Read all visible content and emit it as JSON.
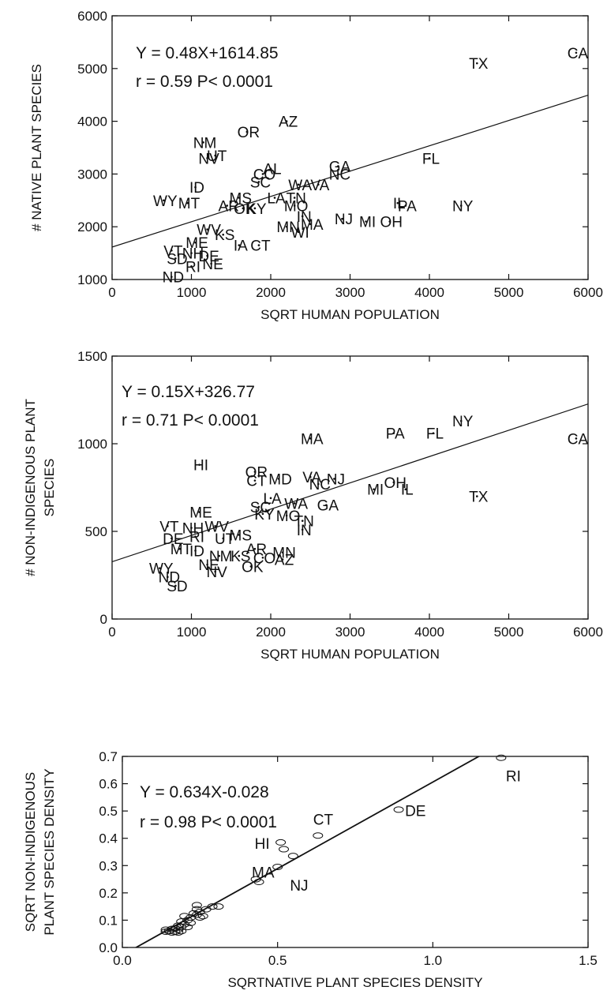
{
  "chart_data": [
    {
      "type": "scatter",
      "xlabel": "SQRT HUMAN POPULATION",
      "ylabel": "# NATIVE PLANT SPECIES",
      "xlim": [
        0,
        6000
      ],
      "ylim": [
        1000,
        6000
      ],
      "xticks": [
        0,
        1000,
        2000,
        3000,
        4000,
        5000,
        6000
      ],
      "yticks": [
        1000,
        2000,
        3000,
        4000,
        5000,
        6000
      ],
      "xtick_labels": [
        "0",
        "1000",
        "2000",
        "3000",
        "4000",
        "5000",
        "6000"
      ],
      "ytick_labels": [
        "1000",
        "2000",
        "3000",
        "4000",
        "5000",
        "6000"
      ],
      "annotations": [
        "Y = 0.48X+1614.85",
        "r = 0.59  P< 0.0001"
      ],
      "fit": {
        "slope": 0.48,
        "intercept": 1614.85
      },
      "grid": false,
      "points": [
        {
          "label": "CA",
          "x": 5850,
          "y": 5300
        },
        {
          "label": "TX",
          "x": 4600,
          "y": 5100
        },
        {
          "label": "AZ",
          "x": 2200,
          "y": 4000
        },
        {
          "label": "OR",
          "x": 1700,
          "y": 3800
        },
        {
          "label": "NM",
          "x": 1150,
          "y": 3600
        },
        {
          "label": "UT",
          "x": 1300,
          "y": 3350
        },
        {
          "label": "NV",
          "x": 1200,
          "y": 3300
        },
        {
          "label": "FL",
          "x": 4000,
          "y": 3300
        },
        {
          "label": "GA",
          "x": 2850,
          "y": 3150
        },
        {
          "label": "AL",
          "x": 2000,
          "y": 3100
        },
        {
          "label": "CO",
          "x": 1900,
          "y": 3000
        },
        {
          "label": "NC",
          "x": 2850,
          "y": 3000
        },
        {
          "label": "SC",
          "x": 1850,
          "y": 2850
        },
        {
          "label": "WA",
          "x": 2350,
          "y": 2800
        },
        {
          "label": "VA",
          "x": 2600,
          "y": 2800
        },
        {
          "label": "ID",
          "x": 1050,
          "y": 2750
        },
        {
          "label": "WY",
          "x": 650,
          "y": 2500
        },
        {
          "label": "MT",
          "x": 950,
          "y": 2450
        },
        {
          "label": "MS",
          "x": 1600,
          "y": 2550
        },
        {
          "label": "LA",
          "x": 2050,
          "y": 2550
        },
        {
          "label": "TN",
          "x": 2300,
          "y": 2550
        },
        {
          "label": "AR",
          "x": 1450,
          "y": 2400
        },
        {
          "label": "OK",
          "x": 1650,
          "y": 2350
        },
        {
          "label": "KY",
          "x": 1800,
          "y": 2350
        },
        {
          "label": "MO",
          "x": 2300,
          "y": 2400
        },
        {
          "label": "IL",
          "x": 3600,
          "y": 2450
        },
        {
          "label": "PA",
          "x": 3700,
          "y": 2400
        },
        {
          "label": "NY",
          "x": 4400,
          "y": 2400
        },
        {
          "label": "IN",
          "x": 2400,
          "y": 2200
        },
        {
          "label": "NJ",
          "x": 2900,
          "y": 2150
        },
        {
          "label": "MI",
          "x": 3200,
          "y": 2100
        },
        {
          "label": "OH",
          "x": 3500,
          "y": 2100
        },
        {
          "label": "MA",
          "x": 2500,
          "y": 2050
        },
        {
          "label": "MN",
          "x": 2200,
          "y": 2000
        },
        {
          "label": "WI",
          "x": 2350,
          "y": 1900
        },
        {
          "label": "WV",
          "x": 1200,
          "y": 1950
        },
        {
          "label": "KS",
          "x": 1400,
          "y": 1850
        },
        {
          "label": "ME",
          "x": 1050,
          "y": 1700
        },
        {
          "label": "IA",
          "x": 1600,
          "y": 1650
        },
        {
          "label": "CT",
          "x": 1850,
          "y": 1650
        },
        {
          "label": "VT",
          "x": 750,
          "y": 1550
        },
        {
          "label": "NH",
          "x": 1000,
          "y": 1500
        },
        {
          "label": "SD",
          "x": 800,
          "y": 1400
        },
        {
          "label": "DE",
          "x": 1200,
          "y": 1450
        },
        {
          "label": "RI",
          "x": 1000,
          "y": 1250
        },
        {
          "label": "NE",
          "x": 1250,
          "y": 1300
        },
        {
          "label": "ND",
          "x": 750,
          "y": 1050
        }
      ]
    },
    {
      "type": "scatter",
      "xlabel": "SQRT HUMAN POPULATION",
      "ylabel": [
        "# NON-INDIGENOUS PLANT",
        "SPECIES"
      ],
      "xlim": [
        0,
        6000
      ],
      "ylim": [
        0,
        1500
      ],
      "xticks": [
        0,
        1000,
        2000,
        3000,
        4000,
        5000,
        6000
      ],
      "yticks": [
        0,
        500,
        1000,
        1500
      ],
      "xtick_labels": [
        "0",
        "1000",
        "2000",
        "3000",
        "4000",
        "5000",
        "6000"
      ],
      "ytick_labels": [
        "0",
        "500",
        "1000",
        "1500"
      ],
      "annotations": [
        "Y = 0.15X+326.77",
        "r = 0.71  P< 0.0001"
      ],
      "fit": {
        "slope": 0.15,
        "intercept": 326.77
      },
      "grid": false,
      "points": [
        {
          "label": "CA",
          "x": 5850,
          "y": 1030
        },
        {
          "label": "NY",
          "x": 4400,
          "y": 1130
        },
        {
          "label": "PA",
          "x": 3550,
          "y": 1060
        },
        {
          "label": "FL",
          "x": 4050,
          "y": 1060
        },
        {
          "label": "TX",
          "x": 4600,
          "y": 700
        },
        {
          "label": "MA",
          "x": 2500,
          "y": 1030
        },
        {
          "label": "HI",
          "x": 1100,
          "y": 880
        },
        {
          "label": "OR",
          "x": 1800,
          "y": 840
        },
        {
          "label": "CT",
          "x": 1800,
          "y": 790
        },
        {
          "label": "MD",
          "x": 2100,
          "y": 800
        },
        {
          "label": "VA",
          "x": 2500,
          "y": 810
        },
        {
          "label": "NJ",
          "x": 2800,
          "y": 800
        },
        {
          "label": "NC",
          "x": 2600,
          "y": 770
        },
        {
          "label": "OH",
          "x": 3550,
          "y": 780
        },
        {
          "label": "MI",
          "x": 3300,
          "y": 740
        },
        {
          "label": "IL",
          "x": 3700,
          "y": 740
        },
        {
          "label": "GA",
          "x": 2700,
          "y": 650
        },
        {
          "label": "LA",
          "x": 2000,
          "y": 690
        },
        {
          "label": "WA",
          "x": 2300,
          "y": 660
        },
        {
          "label": "SC",
          "x": 1850,
          "y": 640
        },
        {
          "label": "ME",
          "x": 1100,
          "y": 610
        },
        {
          "label": "KY",
          "x": 1900,
          "y": 600
        },
        {
          "label": "MO",
          "x": 2200,
          "y": 590
        },
        {
          "label": "TN",
          "x": 2400,
          "y": 560
        },
        {
          "label": "IN",
          "x": 2400,
          "y": 510
        },
        {
          "label": "VT",
          "x": 700,
          "y": 530
        },
        {
          "label": "NH",
          "x": 1000,
          "y": 520
        },
        {
          "label": "WV",
          "x": 1300,
          "y": 530
        },
        {
          "label": "MS",
          "x": 1600,
          "y": 480
        },
        {
          "label": "DE",
          "x": 750,
          "y": 460
        },
        {
          "label": "RI",
          "x": 1050,
          "y": 470
        },
        {
          "label": "UT",
          "x": 1400,
          "y": 460
        },
        {
          "label": "MT",
          "x": 850,
          "y": 400
        },
        {
          "label": "ID",
          "x": 1050,
          "y": 390
        },
        {
          "label": "AR",
          "x": 1800,
          "y": 400
        },
        {
          "label": "NM",
          "x": 1350,
          "y": 360
        },
        {
          "label": "KS",
          "x": 1600,
          "y": 360
        },
        {
          "label": "MN",
          "x": 2150,
          "y": 380
        },
        {
          "label": "CO",
          "x": 1900,
          "y": 350
        },
        {
          "label": "AZ",
          "x": 2150,
          "y": 340
        },
        {
          "label": "NE",
          "x": 1200,
          "y": 310
        },
        {
          "label": "OK",
          "x": 1750,
          "y": 300
        },
        {
          "label": "NV",
          "x": 1300,
          "y": 270
        },
        {
          "label": "WY",
          "x": 600,
          "y": 290
        },
        {
          "label": "ND",
          "x": 700,
          "y": 240
        },
        {
          "label": "SD",
          "x": 800,
          "y": 190
        }
      ]
    },
    {
      "type": "scatter",
      "xlabel": "SQRTNATIVE PLANT SPECIES DENSITY",
      "ylabel": [
        "SQRT NON-INDIGENOUS",
        "PLANT SPECIES DENSITY"
      ],
      "xlim": [
        0.0,
        1.5
      ],
      "ylim": [
        0.0,
        0.7
      ],
      "xticks": [
        0.0,
        0.5,
        1.0,
        1.5
      ],
      "yticks": [
        0.0,
        0.1,
        0.2,
        0.3,
        0.4,
        0.5,
        0.6,
        0.7
      ],
      "xtick_labels": [
        "0.0",
        "0.5",
        "1.0",
        "1.5"
      ],
      "ytick_labels": [
        "0.0",
        "0.1",
        "0.2",
        "0.3",
        "0.4",
        "0.5",
        "0.6",
        "0.7"
      ],
      "annotations": [
        "Y = 0.634X-0.028",
        "r = 0.98  P< 0.0001"
      ],
      "fit": {
        "slope": 0.634,
        "intercept": -0.028
      },
      "grid": false,
      "labeled_points": [
        {
          "label": "RI",
          "x": 1.22,
          "y": 0.695
        },
        {
          "label": "DE",
          "x": 0.89,
          "y": 0.505
        },
        {
          "label": "CT",
          "x": 0.63,
          "y": 0.41
        },
        {
          "label": "HI",
          "x": 0.51,
          "y": 0.385
        },
        {
          "label": "MA",
          "x": 0.52,
          "y": 0.36
        },
        {
          "label": "NJ",
          "x": 0.55,
          "y": 0.335
        }
      ],
      "points": [
        {
          "x": 0.5,
          "y": 0.295
        },
        {
          "x": 0.43,
          "y": 0.25
        },
        {
          "x": 0.44,
          "y": 0.24
        },
        {
          "x": 0.31,
          "y": 0.15
        },
        {
          "x": 0.29,
          "y": 0.15
        },
        {
          "x": 0.27,
          "y": 0.14
        },
        {
          "x": 0.24,
          "y": 0.155
        },
        {
          "x": 0.24,
          "y": 0.14
        },
        {
          "x": 0.25,
          "y": 0.13
        },
        {
          "x": 0.23,
          "y": 0.125
        },
        {
          "x": 0.24,
          "y": 0.12
        },
        {
          "x": 0.26,
          "y": 0.115
        },
        {
          "x": 0.25,
          "y": 0.11
        },
        {
          "x": 0.22,
          "y": 0.11
        },
        {
          "x": 0.2,
          "y": 0.115
        },
        {
          "x": 0.21,
          "y": 0.1
        },
        {
          "x": 0.19,
          "y": 0.095
        },
        {
          "x": 0.22,
          "y": 0.09
        },
        {
          "x": 0.2,
          "y": 0.085
        },
        {
          "x": 0.18,
          "y": 0.08
        },
        {
          "x": 0.19,
          "y": 0.075
        },
        {
          "x": 0.21,
          "y": 0.075
        },
        {
          "x": 0.17,
          "y": 0.07
        },
        {
          "x": 0.16,
          "y": 0.068
        },
        {
          "x": 0.18,
          "y": 0.065
        },
        {
          "x": 0.14,
          "y": 0.065
        },
        {
          "x": 0.15,
          "y": 0.06
        },
        {
          "x": 0.17,
          "y": 0.058
        },
        {
          "x": 0.19,
          "y": 0.06
        },
        {
          "x": 0.18,
          "y": 0.055
        },
        {
          "x": 0.16,
          "y": 0.055
        },
        {
          "x": 0.14,
          "y": 0.058
        }
      ]
    }
  ]
}
